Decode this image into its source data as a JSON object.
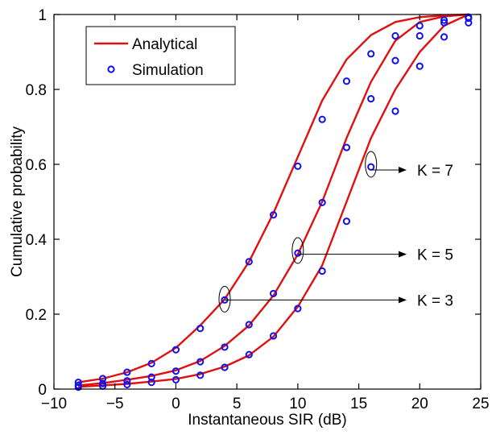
{
  "chart_data": {
    "type": "line",
    "title": "",
    "xlabel": "Instantaneous SIR (dB)",
    "ylabel": "Cumulative probability",
    "xlim": [
      -10,
      25
    ],
    "ylim": [
      0,
      1
    ],
    "xticks": [
      -10,
      -5,
      0,
      5,
      10,
      15,
      20,
      25
    ],
    "xtick_labels": [
      "−10",
      "−5",
      "0",
      "5",
      "10",
      "15",
      "20",
      "25"
    ],
    "yticks": [
      0,
      0.2,
      0.4,
      0.6,
      0.8,
      1
    ],
    "ytick_labels": [
      "0",
      "0.2",
      "0.4",
      "0.6",
      "0.8",
      "1"
    ],
    "grid": false,
    "legend_position": "top-left",
    "legend": [
      {
        "label": "Analytical",
        "style": "red-solid-line"
      },
      {
        "label": "Simulation",
        "style": "blue-circle-marker"
      }
    ],
    "colors": {
      "analytical": "#e01010",
      "simulation": "#1010ee"
    },
    "x": [
      -8,
      -6,
      -4,
      -2,
      0,
      2,
      4,
      6,
      8,
      10,
      12,
      14,
      16,
      18,
      20,
      22,
      24
    ],
    "series": [
      {
        "name": "K = 7",
        "analytical": [
          0.018,
          0.028,
          0.045,
          0.07,
          0.11,
          0.17,
          0.24,
          0.34,
          0.47,
          0.62,
          0.77,
          0.88,
          0.945,
          0.98,
          0.993,
          0.998,
          1.0
        ],
        "simulation": [
          0.018,
          0.028,
          0.045,
          0.068,
          0.105,
          0.162,
          0.238,
          0.34,
          0.465,
          0.595,
          0.72,
          0.822,
          0.895,
          0.943,
          0.97,
          0.985,
          0.993
        ]
      },
      {
        "name": "K = 5",
        "analytical": [
          0.01,
          0.016,
          0.025,
          0.035,
          0.05,
          0.075,
          0.115,
          0.17,
          0.25,
          0.36,
          0.5,
          0.67,
          0.82,
          0.93,
          0.98,
          0.995,
          1.0
        ],
        "simulation": [
          0.01,
          0.015,
          0.022,
          0.032,
          0.048,
          0.073,
          0.112,
          0.172,
          0.255,
          0.363,
          0.498,
          0.645,
          0.775,
          0.877,
          0.943,
          0.978,
          0.99
        ]
      },
      {
        "name": "K = 3",
        "analytical": [
          0.006,
          0.01,
          0.014,
          0.02,
          0.027,
          0.04,
          0.06,
          0.09,
          0.14,
          0.22,
          0.33,
          0.5,
          0.67,
          0.8,
          0.9,
          0.97,
          1.0
        ],
        "simulation": [
          0.005,
          0.008,
          0.012,
          0.018,
          0.025,
          0.037,
          0.058,
          0.092,
          0.142,
          0.215,
          0.315,
          0.448,
          0.593,
          0.742,
          0.862,
          0.94,
          0.978
        ]
      }
    ],
    "annotations": [
      {
        "text": "K = 7",
        "ellipse_at": [
          16,
          0.6
        ],
        "arrow_to_y": 0.585
      },
      {
        "text": "K = 5",
        "ellipse_at": [
          10,
          0.37
        ],
        "arrow_to_y": 0.36
      },
      {
        "text": "K = 3",
        "ellipse_at": [
          4,
          0.24
        ],
        "arrow_to_y": 0.238
      }
    ]
  }
}
